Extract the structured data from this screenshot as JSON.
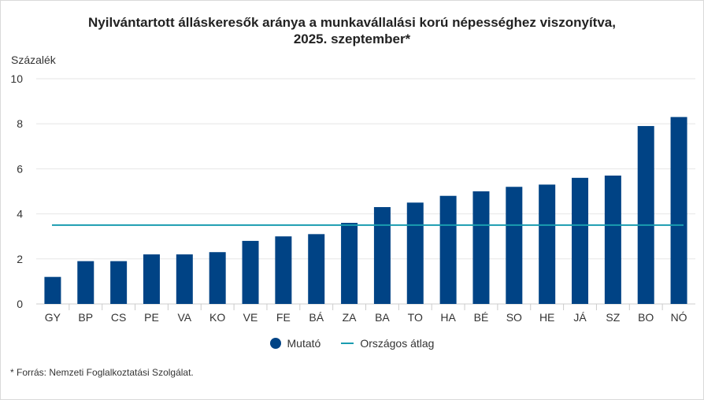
{
  "chart_data": {
    "type": "bar",
    "title_line1": "Nyilvántartott álláskeresők aránya a munkavállalási korú népességhez viszonyítva,",
    "title_line2": "2025. szeptember*",
    "ylabel": "Százalék",
    "xlabel": "",
    "ylim": [
      0,
      10
    ],
    "yticks": [
      0,
      2,
      4,
      6,
      8,
      10
    ],
    "categories": [
      "GY",
      "BP",
      "CS",
      "PE",
      "VA",
      "KO",
      "VE",
      "FE",
      "BÁ",
      "ZA",
      "BA",
      "TO",
      "HA",
      "BÉ",
      "SO",
      "HE",
      "JÁ",
      "SZ",
      "BO",
      "NÓ"
    ],
    "series": [
      {
        "name": "Mutató",
        "type": "bar",
        "values": [
          1.2,
          1.9,
          1.9,
          2.2,
          2.2,
          2.3,
          2.8,
          3.0,
          3.1,
          3.6,
          4.3,
          4.5,
          4.8,
          5.0,
          5.2,
          5.3,
          5.6,
          5.7,
          7.9,
          8.3
        ]
      },
      {
        "name": "Országos átlag",
        "type": "line",
        "value": 3.5
      }
    ],
    "grid": true,
    "legend_position": "bottom"
  },
  "colors": {
    "bar": "#004385",
    "avg_line": "#1a9cb0",
    "grid": "#e6e6e6",
    "axis": "#cccccc"
  },
  "source": "* Forrás: Nemzeti Foglalkoztatási Szolgálat."
}
